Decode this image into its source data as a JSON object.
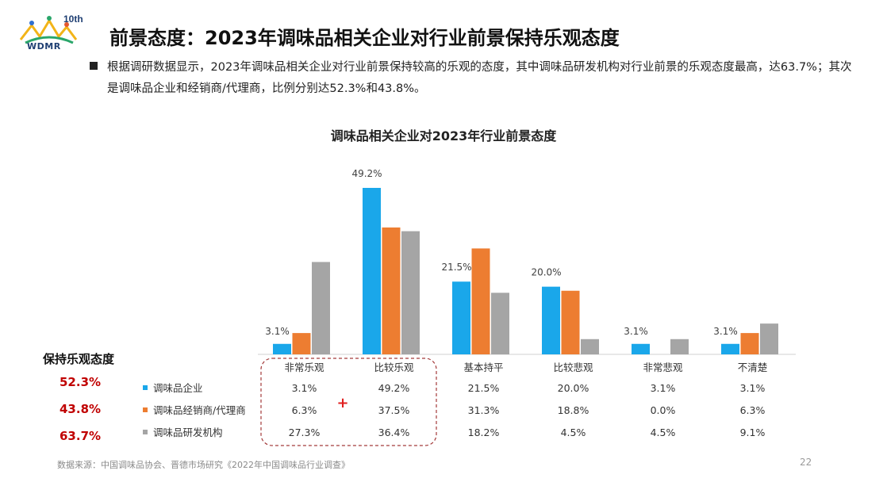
{
  "header": {
    "logo_text": "WDMR",
    "logo_badge": "10th",
    "title": "前景态度：2023年调味品相关企业对行业前景保持乐观态度",
    "description": "根据调研数据显示，2023年调味品相关企业对行业前景保持较高的乐观的态度，其中调味品研发机构对行业前景的乐观态度最高，达63.7%；其次是调味品企业和经销商/代理商，比例分别达52.3%和43.8%。"
  },
  "colors": {
    "series1": "#1aa7ea",
    "series2": "#ed7d31",
    "series3": "#a5a5a5",
    "accent_red": "#c00000",
    "highlight_border": "#a33a3a"
  },
  "side_summary": {
    "heading": "保持乐观态度",
    "values": [
      "52.3%",
      "43.8%",
      "63.7%"
    ]
  },
  "chart_data": {
    "type": "bar",
    "title": "调味品相关企业对2023年行业前景态度",
    "categories": [
      "非常乐观",
      "比较乐观",
      "基本持平",
      "比较悲观",
      "非常悲观",
      "不清楚"
    ],
    "series": [
      {
        "name": "调味品企业",
        "values": [
          3.1,
          49.2,
          21.5,
          20.0,
          3.1,
          3.1
        ]
      },
      {
        "name": "调味品经销商/代理商",
        "values": [
          6.3,
          37.5,
          31.3,
          18.8,
          0.0,
          6.3
        ]
      },
      {
        "name": "调味品研发机构",
        "values": [
          27.3,
          36.4,
          18.2,
          4.5,
          4.5,
          9.1
        ]
      }
    ],
    "data_labels_series1": [
      "3.1%",
      "49.2%",
      "21.5%",
      "20.0%",
      "3.1%",
      "3.1%"
    ],
    "table_values": [
      [
        "3.1%",
        "49.2%",
        "21.5%",
        "20.0%",
        "3.1%",
        "3.1%"
      ],
      [
        "6.3%",
        "37.5%",
        "31.3%",
        "18.8%",
        "0.0%",
        "6.3%"
      ],
      [
        "27.3%",
        "36.4%",
        "18.2%",
        "4.5%",
        "4.5%",
        "9.1%"
      ]
    ],
    "highlight_symbol": "+",
    "ylim": [
      0,
      50
    ]
  },
  "footer": {
    "source": "数据来源：中国调味品协会、晋德市场研究《2022年中国调味品行业调查》",
    "page_number": "22"
  }
}
